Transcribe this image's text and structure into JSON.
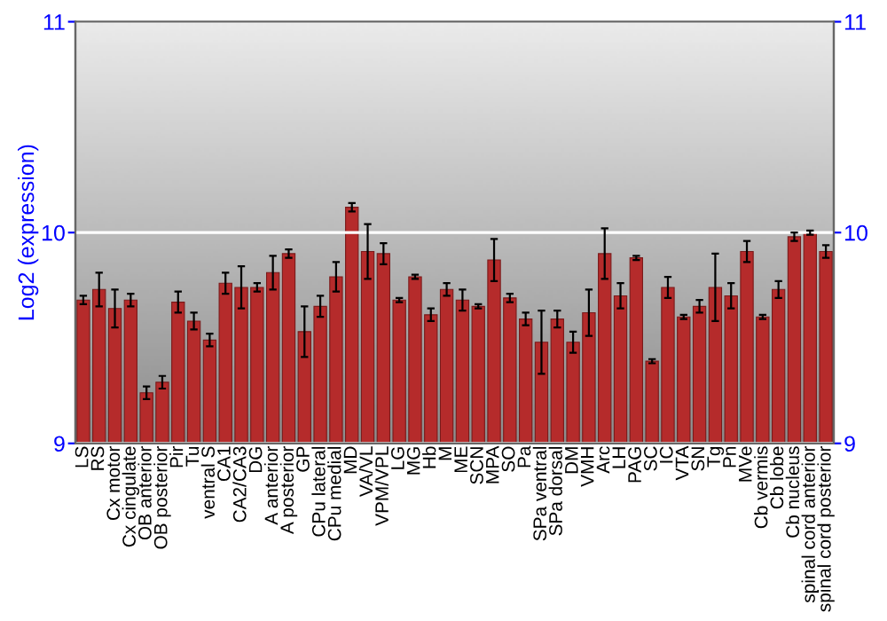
{
  "chart_data": {
    "type": "bar",
    "ylabel": "Log2 (expression)",
    "categories": [
      "LS",
      "RS",
      "Cx motor",
      "Cx cingulate",
      "OB anterior",
      "OB posterior",
      "Pir",
      "Tu",
      "ventral S",
      "CA1",
      "CA2/CA3",
      "DG",
      "A anterior",
      "A posterior",
      "GP",
      "CPu lateral",
      "CPu medial",
      "MD",
      "VA/VL",
      "VPM/VPL",
      "LG",
      "MG",
      "Hb",
      "M",
      "ME",
      "SCN",
      "MPA",
      "SO",
      "Pa",
      "SPa ventral",
      "SPa dorsal",
      "DM",
      "VMH",
      "Arc",
      "LH",
      "PAG",
      "SC",
      "IC",
      "VTA",
      "SN",
      "Tg",
      "Pn",
      "MVe",
      "Cb vermis",
      "Cb lobe",
      "Cb nucleus",
      "spinal cord anterior",
      "spinal cord posterior"
    ],
    "series": [
      {
        "color": "#b52b2b",
        "values": [
          9.68,
          9.73,
          9.64,
          9.68,
          9.24,
          9.29,
          9.67,
          9.58,
          9.49,
          9.76,
          9.74,
          9.74,
          9.81,
          9.9,
          9.53,
          9.65,
          9.79,
          10.12,
          9.91,
          9.9,
          9.68,
          9.79,
          9.61,
          9.73,
          9.68,
          9.65,
          9.87,
          9.69,
          9.59,
          9.48,
          9.59,
          9.48,
          9.62,
          9.9,
          9.7,
          9.88,
          9.39,
          9.74,
          9.6,
          9.65,
          9.74,
          9.7,
          9.91,
          9.6,
          9.73,
          9.98,
          10.0,
          9.91
        ],
        "errors": [
          0.02,
          0.08,
          0.09,
          0.03,
          0.03,
          0.03,
          0.05,
          0.04,
          0.03,
          0.05,
          0.1,
          0.02,
          0.08,
          0.02,
          0.12,
          0.05,
          0.07,
          0.02,
          0.13,
          0.05,
          0.01,
          0.01,
          0.03,
          0.03,
          0.05,
          0.01,
          0.1,
          0.02,
          0.03,
          0.15,
          0.04,
          0.05,
          0.11,
          0.12,
          0.06,
          0.01,
          0.01,
          0.05,
          0.01,
          0.03,
          0.16,
          0.06,
          0.05,
          0.01,
          0.04,
          0.02,
          0.01,
          0.03
        ]
      }
    ],
    "ylim": [
      9,
      11
    ],
    "yticks": [
      9,
      10,
      11
    ],
    "y2lim": [
      9,
      11
    ],
    "y2ticks": [
      9,
      10,
      11
    ],
    "grid": "y"
  }
}
